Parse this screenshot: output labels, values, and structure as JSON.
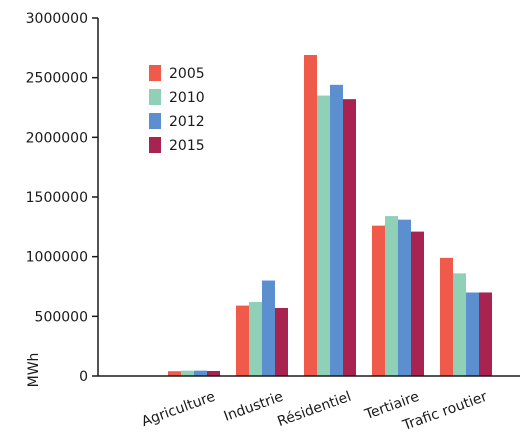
{
  "chart_data": {
    "type": "bar",
    "title": "",
    "xlabel": "",
    "ylabel": "MWh",
    "ylim": [
      0,
      3000000
    ],
    "yticks": [
      0,
      500000,
      1000000,
      1500000,
      2000000,
      2500000,
      3000000
    ],
    "ytick_labels": [
      "0",
      "500000",
      "1000000",
      "1500000",
      "2000000",
      "2500000",
      "3000000"
    ],
    "categories": [
      "Agriculture",
      "Industrie",
      "Résidentiel",
      "Tertiaire",
      "Trafic routier"
    ],
    "series": [
      {
        "name": "2005",
        "color": "#ef5a4a",
        "values": [
          40000,
          590000,
          2690000,
          1260000,
          990000
        ]
      },
      {
        "name": "2010",
        "color": "#8fd0b6",
        "values": [
          45000,
          620000,
          2350000,
          1340000,
          860000
        ]
      },
      {
        "name": "2012",
        "color": "#5b8fd0",
        "values": [
          45000,
          800000,
          2440000,
          1310000,
          700000
        ]
      },
      {
        "name": "2015",
        "color": "#a8234f",
        "values": [
          42000,
          570000,
          2320000,
          1210000,
          700000
        ]
      }
    ],
    "grid": false,
    "legend_position": "top-left"
  }
}
